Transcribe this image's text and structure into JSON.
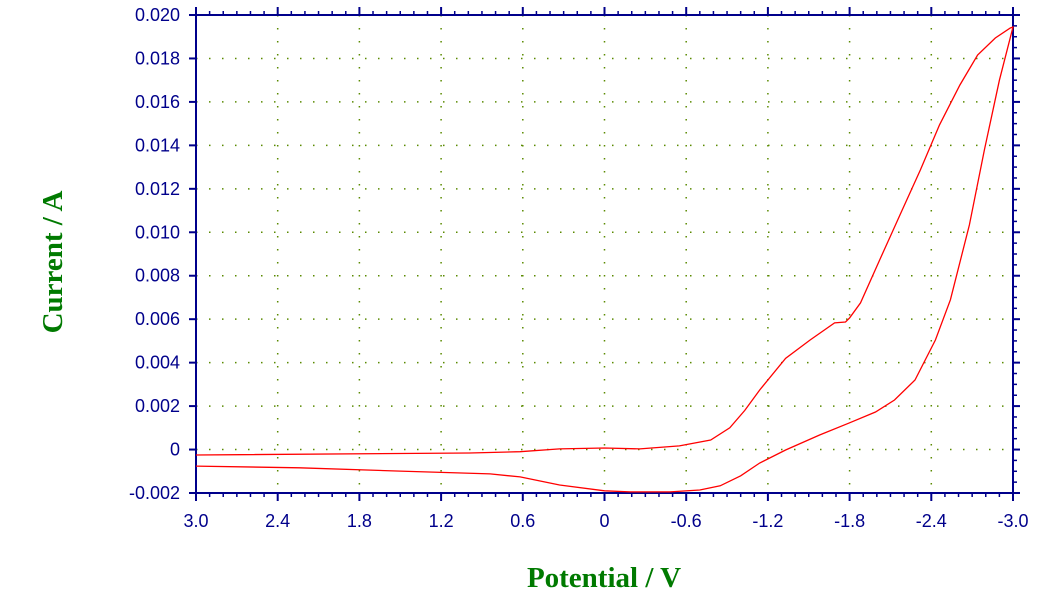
{
  "chart_data": {
    "type": "line",
    "title": "",
    "xlabel": "Potential / V",
    "ylabel": "Current / A",
    "xlim": [
      3.0,
      -3.0
    ],
    "ylim": [
      -0.002,
      0.02
    ],
    "x_reversed": true,
    "grid": true,
    "x_ticks": [
      "3.0",
      "2.4",
      "1.8",
      "1.2",
      "0.6",
      "0",
      "-0.6",
      "-1.2",
      "-1.8",
      "-2.4",
      "-3.0"
    ],
    "y_ticks": [
      "-0.002",
      "0",
      "0.002",
      "0.004",
      "0.006",
      "0.008",
      "0.010",
      "0.012",
      "0.014",
      "0.016",
      "0.018",
      "0.020"
    ],
    "colors": {
      "series": "#FF0000",
      "axis": "#00008B",
      "grid": "#5A8A00",
      "axis_title": "#007A00"
    },
    "series": [
      {
        "x": [
          3.0,
          0.99,
          0.62,
          0.33,
          0.0,
          -0.26,
          -0.55,
          -0.78,
          -0.92,
          -1.03,
          -1.14,
          -1.33,
          -1.51,
          -1.69,
          -1.77,
          -1.8,
          -1.88,
          -2.02,
          -2.17,
          -2.32,
          -2.46,
          -2.61,
          -2.74,
          -2.87,
          -2.98,
          -3.0,
          -2.9,
          -2.79,
          -2.68,
          -2.54,
          -2.43,
          -2.28,
          -2.13,
          -1.99,
          -1.8,
          -1.58,
          -1.33,
          -1.14,
          -1.0,
          -0.85,
          -0.7,
          -0.48,
          -0.19,
          0.0,
          0.33,
          0.62,
          0.84,
          1.5,
          2.24,
          3.0
        ],
        "y": [
          -0.00025,
          -0.00016,
          -0.0001,
          3e-05,
          7e-05,
          3e-05,
          0.00017,
          0.00044,
          0.001,
          0.0018,
          0.00274,
          0.0042,
          0.00504,
          0.00583,
          0.00587,
          0.00606,
          0.00675,
          0.00872,
          0.0108,
          0.01287,
          0.01494,
          0.01678,
          0.01816,
          0.01894,
          0.0194,
          0.01945,
          0.017,
          0.01379,
          0.01034,
          0.00689,
          0.00504,
          0.0032,
          0.00228,
          0.00173,
          0.00123,
          0.00067,
          -2e-05,
          -0.00062,
          -0.00121,
          -0.00167,
          -0.00186,
          -0.00195,
          -0.00195,
          -0.0019,
          -0.00163,
          -0.00126,
          -0.00112,
          -0.00099,
          -0.00084,
          -0.00076
        ]
      }
    ]
  }
}
